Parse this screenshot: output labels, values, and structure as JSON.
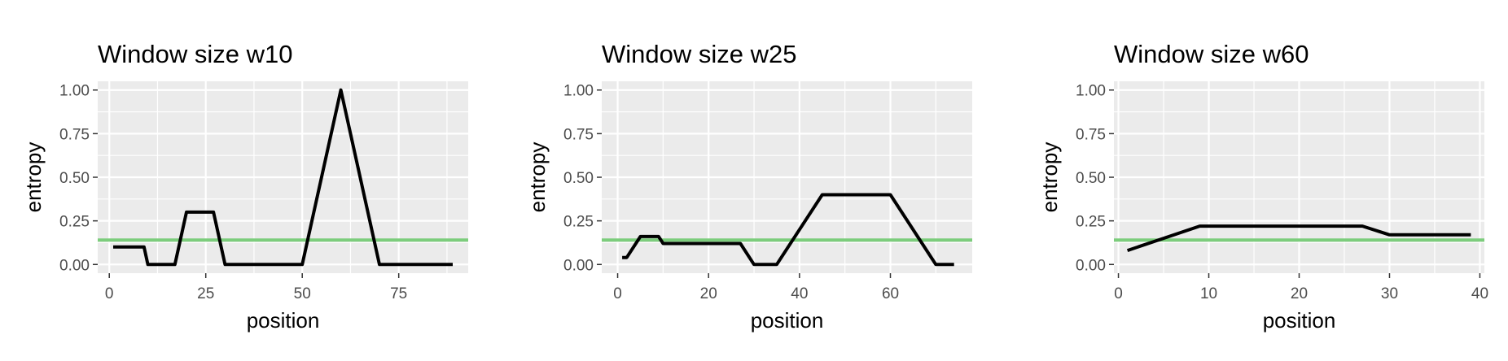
{
  "chart_data": [
    {
      "type": "line",
      "title": "Window size w10",
      "xlabel": "position",
      "ylabel": "entropy",
      "xlim": [
        -3,
        93
      ],
      "ylim": [
        -0.05,
        1.05
      ],
      "xticks": [
        0,
        25,
        50,
        75
      ],
      "yticks": [
        0.0,
        0.25,
        0.5,
        0.75,
        1.0
      ],
      "ytick_labels": [
        "0.00",
        "0.25",
        "0.50",
        "0.75",
        "1.00"
      ],
      "grid": true,
      "reference_line": {
        "y": 0.14,
        "color": "#7ccd7c"
      },
      "series": [
        {
          "color": "#000000",
          "x": [
            1,
            9,
            10,
            17,
            20,
            27,
            30,
            50,
            60,
            70,
            89
          ],
          "values": [
            0.1,
            0.1,
            0.0,
            0.0,
            0.3,
            0.3,
            0.0,
            0.0,
            1.0,
            0.0,
            0.0
          ]
        }
      ]
    },
    {
      "type": "line",
      "title": "Window size w25",
      "xlabel": "position",
      "ylabel": "entropy",
      "xlim": [
        -3.5,
        78
      ],
      "ylim": [
        -0.05,
        1.05
      ],
      "xticks": [
        0,
        20,
        40,
        60
      ],
      "yticks": [
        0.0,
        0.25,
        0.5,
        0.75,
        1.0
      ],
      "ytick_labels": [
        "0.00",
        "0.25",
        "0.50",
        "0.75",
        "1.00"
      ],
      "grid": true,
      "reference_line": {
        "y": 0.14,
        "color": "#7ccd7c"
      },
      "series": [
        {
          "color": "#000000",
          "x": [
            1,
            2,
            5,
            9,
            10,
            27,
            30,
            35,
            45,
            60,
            70,
            74
          ],
          "values": [
            0.04,
            0.04,
            0.16,
            0.16,
            0.12,
            0.12,
            0.0,
            0.0,
            0.4,
            0.4,
            0.0,
            0.0
          ]
        }
      ]
    },
    {
      "type": "line",
      "title": "Window size w60",
      "xlabel": "position",
      "ylabel": "entropy",
      "xlim": [
        -0.5,
        40.5
      ],
      "ylim": [
        -0.05,
        1.05
      ],
      "xticks": [
        0,
        10,
        20,
        30,
        40
      ],
      "yticks": [
        0.0,
        0.25,
        0.5,
        0.75,
        1.0
      ],
      "ytick_labels": [
        "0.00",
        "0.25",
        "0.50",
        "0.75",
        "1.00"
      ],
      "grid": true,
      "reference_line": {
        "y": 0.14,
        "color": "#7ccd7c"
      },
      "series": [
        {
          "color": "#000000",
          "x": [
            1,
            5,
            9,
            27,
            30,
            39
          ],
          "values": [
            0.08,
            0.15,
            0.22,
            0.22,
            0.17,
            0.17
          ]
        }
      ]
    }
  ]
}
